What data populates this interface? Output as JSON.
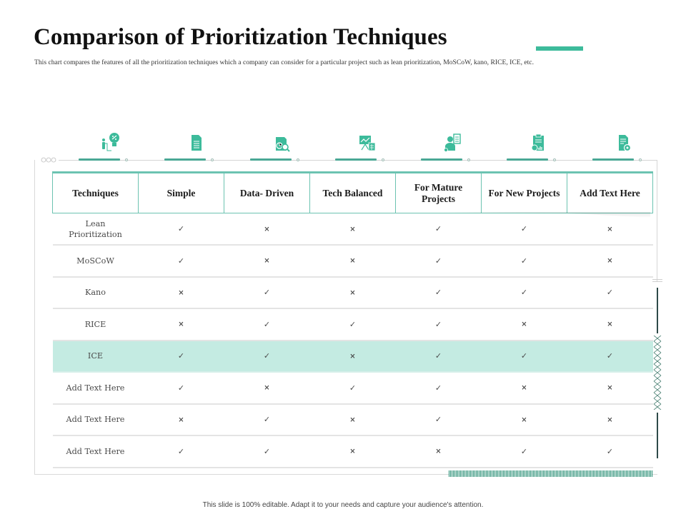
{
  "slide": {
    "title": "Comparison of Prioritization Techniques",
    "subtitle": "This chart compares the features of  all the prioritization techniques which a company can consider for a particular project such as lean prioritization, MoSCoW, kano, RICE, ICE, etc.",
    "footer": "This slide is 100% editable.  Adapt it to your needs and capture your audience's attention.",
    "accent_color": "#3dbb9b",
    "highlight_color": "#c4ebe2"
  },
  "icons": [
    {
      "name": "person-lightbulb-icon"
    },
    {
      "name": "document-icon"
    },
    {
      "name": "report-magnifier-icon"
    },
    {
      "name": "presentation-calculator-icon"
    },
    {
      "name": "businessman-checklist-icon"
    },
    {
      "name": "clipboard-gear-chart-icon"
    },
    {
      "name": "document-gear-icon"
    }
  ],
  "table": {
    "headers": [
      "Techniques",
      "Simple",
      "Data- Driven",
      "Tech Balanced",
      "For Mature Projects",
      "For New Projects",
      "Add Text Here"
    ],
    "symbols": {
      "yes": "✓",
      "no": "×"
    },
    "rows": [
      {
        "name": "Lean Prioritization",
        "values": [
          "yes",
          "no",
          "no",
          "yes",
          "yes",
          "no"
        ],
        "highlight": false
      },
      {
        "name": "MoSCoW",
        "values": [
          "yes",
          "no",
          "no",
          "yes",
          "yes",
          "no"
        ],
        "highlight": false
      },
      {
        "name": "Kano",
        "values": [
          "no",
          "yes",
          "no",
          "yes",
          "yes",
          "yes"
        ],
        "highlight": false
      },
      {
        "name": "RICE",
        "values": [
          "no",
          "yes",
          "yes",
          "yes",
          "no",
          "no"
        ],
        "highlight": false
      },
      {
        "name": "ICE",
        "values": [
          "yes",
          "yes",
          "no",
          "yes",
          "yes",
          "yes"
        ],
        "highlight": true
      },
      {
        "name": "Add Text Here",
        "values": [
          "yes",
          "no",
          "yes",
          "yes",
          "no",
          "no"
        ],
        "highlight": false
      },
      {
        "name": "Add Text Here",
        "values": [
          "no",
          "yes",
          "no",
          "yes",
          "no",
          "no"
        ],
        "highlight": false
      },
      {
        "name": "Add Text Here",
        "values": [
          "yes",
          "yes",
          "no",
          "no",
          "yes",
          "yes"
        ],
        "highlight": false
      }
    ]
  }
}
